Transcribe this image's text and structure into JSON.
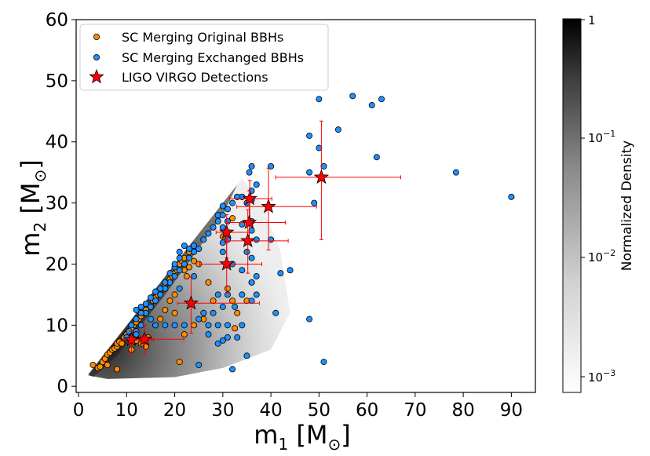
{
  "chart_data": {
    "type": "scatter",
    "xlabel": "m1 [M⊙]",
    "ylabel": "m2 [M⊙]",
    "xlim": [
      -0.5,
      95
    ],
    "ylim": [
      -1,
      60
    ],
    "x_ticks": [
      0,
      10,
      20,
      30,
      40,
      50,
      60,
      70,
      80,
      90
    ],
    "y_ticks": [
      0,
      10,
      20,
      30,
      40,
      50,
      60
    ],
    "grid": false,
    "legend_position": "top-left",
    "background_density": "grey density region between m2 = m1 and m2 ≈ 0.2·m1, densest near the equal-mass line",
    "colorbar": {
      "label": "Normalized Density",
      "scale": "log",
      "ticks": [
        "1",
        "10^-1",
        "10^-2",
        "10^-3"
      ]
    },
    "series": [
      {
        "name": "SC Merging Original BBHs",
        "marker": "circle",
        "color": "#ff8c00",
        "points": [
          [
            3,
            3.5
          ],
          [
            4,
            3
          ],
          [
            4.5,
            3.2
          ],
          [
            5,
            4
          ],
          [
            5.5,
            4.5
          ],
          [
            6,
            5.2
          ],
          [
            6.5,
            5.5
          ],
          [
            7,
            6
          ],
          [
            7.5,
            6.2
          ],
          [
            8,
            6.5
          ],
          [
            8,
            7
          ],
          [
            8.5,
            7.3
          ],
          [
            9,
            7
          ],
          [
            9.5,
            8
          ],
          [
            10,
            8.5
          ],
          [
            10.5,
            9
          ],
          [
            11,
            9.5
          ],
          [
            11.5,
            10
          ],
          [
            12,
            10.5
          ],
          [
            12.5,
            11
          ],
          [
            13,
            11.5
          ],
          [
            13.5,
            12
          ],
          [
            14,
            12.5
          ],
          [
            15,
            13
          ],
          [
            15.5,
            14
          ],
          [
            16,
            14.5
          ],
          [
            16.5,
            15
          ],
          [
            17,
            15.5
          ],
          [
            17.5,
            16
          ],
          [
            18,
            16.5
          ],
          [
            18.5,
            17
          ],
          [
            19,
            17.5
          ],
          [
            19.5,
            18
          ],
          [
            20,
            18.5
          ],
          [
            20.5,
            19
          ],
          [
            21,
            20
          ],
          [
            21.5,
            20.5
          ],
          [
            22,
            21
          ],
          [
            22.5,
            18
          ],
          [
            19,
            14
          ],
          [
            20,
            12
          ],
          [
            17,
            11
          ],
          [
            16,
            10
          ],
          [
            13,
            7
          ],
          [
            14,
            6.5
          ],
          [
            21,
            4
          ],
          [
            22,
            8.5
          ],
          [
            24,
            10
          ],
          [
            26,
            11
          ],
          [
            23,
            22
          ],
          [
            25,
            20
          ],
          [
            27,
            17
          ],
          [
            28,
            14
          ],
          [
            32,
            14
          ],
          [
            31,
            16
          ],
          [
            33,
            12
          ],
          [
            36,
            17
          ],
          [
            35,
            14
          ],
          [
            32.5,
            9.5
          ],
          [
            34,
            31
          ],
          [
            8,
            2.8
          ],
          [
            6,
            3.5
          ],
          [
            11,
            6
          ],
          [
            12,
            7.5
          ],
          [
            14.5,
            8
          ],
          [
            18,
            12.5
          ],
          [
            20,
            15
          ],
          [
            22,
            19
          ],
          [
            23,
            19.5
          ],
          [
            24,
            20.5
          ],
          [
            30,
            24.5
          ],
          [
            32,
            27.5
          ]
        ]
      },
      {
        "name": "SC Merging Exchanged BBHs",
        "marker": "circle",
        "color": "#1e90ff",
        "points": [
          [
            50,
            47
          ],
          [
            57,
            47.5
          ],
          [
            61,
            46
          ],
          [
            63,
            47
          ],
          [
            54,
            42
          ],
          [
            48,
            41
          ],
          [
            50,
            39
          ],
          [
            62,
            37.5
          ],
          [
            51,
            36
          ],
          [
            48,
            35
          ],
          [
            36,
            36
          ],
          [
            40,
            36
          ],
          [
            35.5,
            35
          ],
          [
            78.5,
            35
          ],
          [
            90,
            31
          ],
          [
            37,
            33
          ],
          [
            36,
            32
          ],
          [
            34,
            31
          ],
          [
            33,
            31
          ],
          [
            36,
            30.5
          ],
          [
            35,
            30
          ],
          [
            49,
            30
          ],
          [
            30,
            29.5
          ],
          [
            29,
            28
          ],
          [
            31,
            27
          ],
          [
            30,
            26
          ],
          [
            34,
            26.5
          ],
          [
            36,
            27
          ],
          [
            36,
            25.5
          ],
          [
            37,
            24
          ],
          [
            40,
            24
          ],
          [
            31,
            24
          ],
          [
            30,
            23.5
          ],
          [
            35,
            22
          ],
          [
            36,
            21
          ],
          [
            34,
            19
          ],
          [
            32,
            20
          ],
          [
            44,
            19
          ],
          [
            42,
            18.5
          ],
          [
            37,
            18
          ],
          [
            36,
            17
          ],
          [
            34,
            15
          ],
          [
            36,
            14
          ],
          [
            31,
            15
          ],
          [
            29,
            15
          ],
          [
            37,
            15
          ],
          [
            32.5,
            13
          ],
          [
            30,
            13
          ],
          [
            28,
            12
          ],
          [
            27,
            10
          ],
          [
            26,
            12
          ],
          [
            25,
            11
          ],
          [
            29,
            10
          ],
          [
            31,
            10
          ],
          [
            34,
            10
          ],
          [
            33,
            8
          ],
          [
            31,
            8
          ],
          [
            30,
            7.5
          ],
          [
            29,
            7
          ],
          [
            27,
            8.5
          ],
          [
            25,
            3.5
          ],
          [
            32,
            2.8
          ],
          [
            48,
            11
          ],
          [
            51,
            4
          ],
          [
            35,
            5
          ],
          [
            22,
            10
          ],
          [
            20,
            10
          ],
          [
            18,
            10
          ],
          [
            16,
            10
          ],
          [
            15,
            11
          ],
          [
            14,
            12
          ],
          [
            13,
            13
          ],
          [
            12,
            12.5
          ],
          [
            12,
            11
          ],
          [
            11,
            10
          ],
          [
            10.5,
            9
          ],
          [
            10,
            8
          ],
          [
            11,
            8
          ],
          [
            12,
            9
          ],
          [
            13,
            10
          ],
          [
            14,
            12
          ],
          [
            15,
            13
          ],
          [
            16,
            14
          ],
          [
            17,
            15
          ],
          [
            18,
            16
          ],
          [
            19,
            17
          ],
          [
            20,
            18
          ],
          [
            21,
            19
          ],
          [
            22,
            20
          ],
          [
            23,
            21
          ],
          [
            24,
            22
          ],
          [
            25,
            22.5
          ],
          [
            22,
            23
          ],
          [
            21,
            22
          ],
          [
            20,
            19.5
          ],
          [
            19,
            18.5
          ],
          [
            18,
            17
          ],
          [
            17,
            16
          ],
          [
            16,
            15.5
          ],
          [
            15,
            14.5
          ],
          [
            14,
            13.5
          ],
          [
            13,
            12
          ],
          [
            20,
            20
          ],
          [
            21,
            21
          ],
          [
            23,
            22.5
          ],
          [
            24,
            23
          ],
          [
            26,
            24
          ],
          [
            27,
            25
          ],
          [
            28,
            26
          ],
          [
            29,
            27
          ],
          [
            30,
            28
          ],
          [
            31,
            29
          ],
          [
            32,
            30
          ],
          [
            33,
            31
          ],
          [
            12,
            8.5
          ],
          [
            21,
            16
          ],
          [
            24,
            18
          ],
          [
            30,
            22
          ],
          [
            41,
            12
          ]
        ]
      },
      {
        "name": "LIGO VIRGO Detections",
        "marker": "star",
        "color": "#ff0000",
        "points": [
          {
            "x": 50.5,
            "y": 34.2,
            "xerr": [
              9.5,
              16.5
            ],
            "yerr": [
              10.2,
              9.2
            ]
          },
          {
            "x": 35.6,
            "y": 30.7,
            "xerr": [
              4.2,
              4.6
            ],
            "yerr": [
              4.4,
              3
            ]
          },
          {
            "x": 39.5,
            "y": 29.4,
            "xerr": [
              6.6,
              10
            ],
            "yerr": [
              7.1,
              6.3
            ]
          },
          {
            "x": 35.5,
            "y": 26.8,
            "xerr": [
              4.6,
              7.5
            ],
            "yerr": [
              3.2,
              5.2
            ]
          },
          {
            "x": 30.8,
            "y": 25.2,
            "xerr": [
              2.2,
              4.7
            ],
            "yerr": [
              4.2,
              2.9
            ]
          },
          {
            "x": 35.2,
            "y": 23.8,
            "xerr": [
              4.9,
              8.4
            ],
            "yerr": [
              5.3,
              5.1
            ]
          },
          {
            "x": 30.8,
            "y": 20.0,
            "xerr": [
              5.6,
              7.3
            ],
            "yerr": [
              4.8,
              4.1
            ]
          },
          {
            "x": 23.4,
            "y": 13.6,
            "xerr": [
              2.8,
              14.2
            ],
            "yerr": [
              4.9,
              4.3
            ]
          },
          {
            "x": 13.7,
            "y": 7.7,
            "xerr": [
              2.5,
              8.2
            ],
            "yerr": [
              2.5,
              2.3
            ]
          },
          {
            "x": 11.0,
            "y": 7.6,
            "xerr": [
              1.6,
              4.6
            ],
            "yerr": [
              2.2,
              1.4
            ]
          }
        ]
      }
    ]
  }
}
